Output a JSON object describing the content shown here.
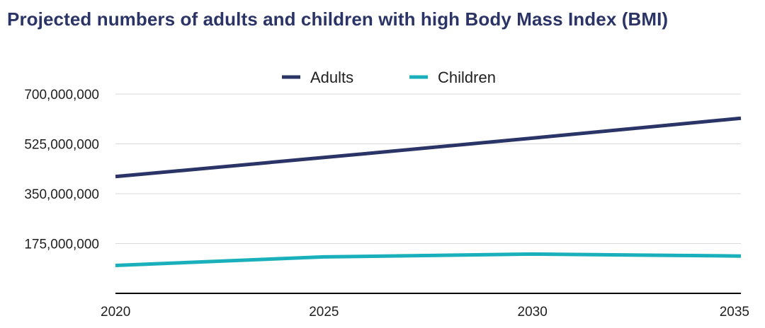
{
  "chart_data": {
    "type": "line",
    "title": "Projected numbers of adults and children with high Body Mass Index (BMI)",
    "x": [
      "2020",
      "2025",
      "2030",
      "2035"
    ],
    "series": [
      {
        "name": "Adults",
        "values": [
          410000000,
          477000000,
          545000000,
          615000000
        ],
        "color": "#2b3467"
      },
      {
        "name": "Children",
        "values": [
          98000000,
          128000000,
          138000000,
          131000000
        ],
        "color": "#1ab0bb"
      }
    ],
    "ylim": [
      0,
      700000000
    ],
    "yticks": [
      175000000,
      350000000,
      525000000,
      700000000
    ],
    "ytick_labels": [
      "175,000,000",
      "350,000,000",
      "525,000,000",
      "700,000,000"
    ],
    "grid": true,
    "legend": "top-center",
    "xlabel": "",
    "ylabel": ""
  }
}
